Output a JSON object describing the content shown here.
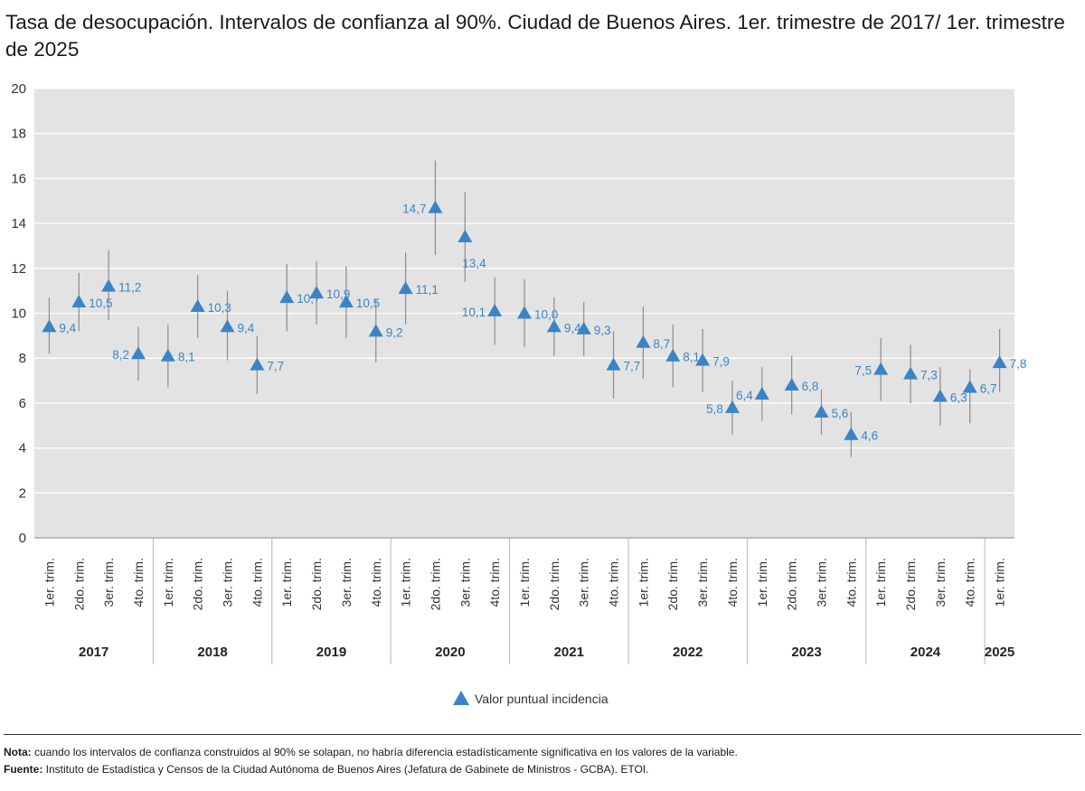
{
  "chart_data": {
    "type": "scatter",
    "title": "Tasa de desocupación. Intervalos de confianza al 90%. Ciudad de Buenos Aires. 1er. trimestre de 2017/ 1er. trimestre de 2025",
    "ylim": [
      0,
      20
    ],
    "yticks": [
      "0",
      "2",
      "4",
      "6",
      "8",
      "10",
      "12",
      "14",
      "16",
      "18",
      "20"
    ],
    "grid": "horizontal",
    "legend_position": "bottom-center",
    "quarter_labels": [
      "1er. trim.",
      "2do. trim.",
      "3er. trim.",
      "4to. trim."
    ],
    "years": [
      "2017",
      "2018",
      "2019",
      "2020",
      "2021",
      "2022",
      "2023",
      "2024",
      "2025"
    ],
    "series": [
      {
        "name": "Valor puntual incidencia",
        "color": "#3a84c6",
        "marker": "triangle",
        "points": [
          {
            "year": "2017",
            "q": 1,
            "value": 9.4,
            "label": "9,4",
            "low": 8.2,
            "high": 10.7
          },
          {
            "year": "2017",
            "q": 2,
            "value": 10.5,
            "label": "10,5",
            "low": 9.2,
            "high": 11.8
          },
          {
            "year": "2017",
            "q": 3,
            "value": 11.2,
            "label": "11,2",
            "low": 9.7,
            "high": 12.8
          },
          {
            "year": "2017",
            "q": 4,
            "value": 8.2,
            "label": "8,2",
            "low": 7.0,
            "high": 9.4
          },
          {
            "year": "2018",
            "q": 1,
            "value": 8.1,
            "label": "8,1",
            "low": 6.7,
            "high": 9.5
          },
          {
            "year": "2018",
            "q": 2,
            "value": 10.3,
            "label": "10,3",
            "low": 8.9,
            "high": 11.7
          },
          {
            "year": "2018",
            "q": 3,
            "value": 9.4,
            "label": "9,4",
            "low": 7.9,
            "high": 11.0
          },
          {
            "year": "2018",
            "q": 4,
            "value": 7.7,
            "label": "7,7",
            "low": 6.4,
            "high": 9.0
          },
          {
            "year": "2019",
            "q": 1,
            "value": 10.7,
            "label": "10,7",
            "low": 9.2,
            "high": 12.2
          },
          {
            "year": "2019",
            "q": 2,
            "value": 10.9,
            "label": "10,9",
            "low": 9.5,
            "high": 12.3
          },
          {
            "year": "2019",
            "q": 3,
            "value": 10.5,
            "label": "10,5",
            "low": 8.9,
            "high": 12.1
          },
          {
            "year": "2019",
            "q": 4,
            "value": 9.2,
            "label": "9,2",
            "low": 7.8,
            "high": 10.6
          },
          {
            "year": "2020",
            "q": 1,
            "value": 11.1,
            "label": "11,1",
            "low": 9.5,
            "high": 12.7
          },
          {
            "year": "2020",
            "q": 2,
            "value": 14.7,
            "label": "14,7",
            "low": 12.6,
            "high": 16.8
          },
          {
            "year": "2020",
            "q": 3,
            "value": 13.4,
            "label": "13,4",
            "low": 11.4,
            "high": 15.4
          },
          {
            "year": "2020",
            "q": 4,
            "value": 10.1,
            "label": "10,1",
            "low": 8.6,
            "high": 11.6
          },
          {
            "year": "2021",
            "q": 1,
            "value": 10.0,
            "label": "10,0",
            "low": 8.5,
            "high": 11.5
          },
          {
            "year": "2021",
            "q": 2,
            "value": 9.4,
            "label": "9,4",
            "low": 8.1,
            "high": 10.7
          },
          {
            "year": "2021",
            "q": 3,
            "value": 9.3,
            "label": "9,3",
            "low": 8.1,
            "high": 10.5
          },
          {
            "year": "2021",
            "q": 4,
            "value": 7.7,
            "label": "7,7",
            "low": 6.2,
            "high": 9.2
          },
          {
            "year": "2022",
            "q": 1,
            "value": 8.7,
            "label": "8,7",
            "low": 7.1,
            "high": 10.3
          },
          {
            "year": "2022",
            "q": 2,
            "value": 8.1,
            "label": "8,1",
            "low": 6.7,
            "high": 9.5
          },
          {
            "year": "2022",
            "q": 3,
            "value": 7.9,
            "label": "7,9",
            "low": 6.5,
            "high": 9.3
          },
          {
            "year": "2022",
            "q": 4,
            "value": 5.8,
            "label": "5,8",
            "low": 4.6,
            "high": 7.0
          },
          {
            "year": "2023",
            "q": 1,
            "value": 6.4,
            "label": "6,4",
            "low": 5.2,
            "high": 7.6
          },
          {
            "year": "2023",
            "q": 2,
            "value": 6.8,
            "label": "6,8",
            "low": 5.5,
            "high": 8.1
          },
          {
            "year": "2023",
            "q": 3,
            "value": 5.6,
            "label": "5,6",
            "low": 4.6,
            "high": 6.6
          },
          {
            "year": "2023",
            "q": 4,
            "value": 4.6,
            "label": "4,6",
            "low": 3.6,
            "high": 5.6
          },
          {
            "year": "2024",
            "q": 1,
            "value": 7.5,
            "label": "7,5",
            "low": 6.1,
            "high": 8.9
          },
          {
            "year": "2024",
            "q": 2,
            "value": 7.3,
            "label": "7,3",
            "low": 6.0,
            "high": 8.6
          },
          {
            "year": "2024",
            "q": 3,
            "value": 6.3,
            "label": "6,3",
            "low": 5.0,
            "high": 7.6
          },
          {
            "year": "2024",
            "q": 4,
            "value": 6.7,
            "label": "6,7",
            "low": 5.1,
            "high": 7.5
          },
          {
            "year": "2025",
            "q": 1,
            "value": 7.8,
            "label": "7,8",
            "low": 6.5,
            "high": 9.3
          }
        ]
      }
    ]
  },
  "footer": {
    "note_label": "Nota:",
    "note_text": " cuando los intervalos de confianza construidos al 90% se solapan, no habría diferencia estadísticamente significativa en los valores de la variable.",
    "source_label": "Fuente:",
    "source_text": " Instituto de Estadística y Censos de la Ciudad Autónoma de Buenos Aires (Jefatura de Gabinete de Ministros - GCBA). ETOI."
  }
}
